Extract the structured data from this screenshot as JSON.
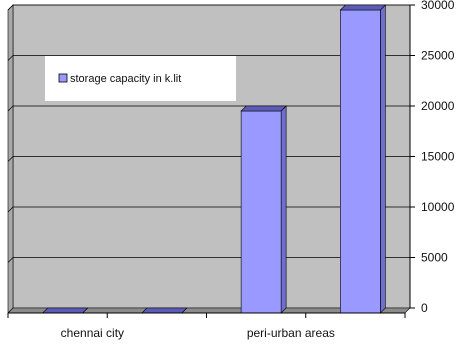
{
  "chart_data": {
    "type": "bar",
    "style": "3d-column",
    "categories": [
      "chennai city",
      "",
      "peri-urban areas",
      ""
    ],
    "series": [
      {
        "name": "storage capacity in k.lit",
        "values": [
          0,
          0,
          20000,
          30000
        ]
      }
    ],
    "ylim": [
      0,
      30000
    ],
    "y_ticks": [
      0,
      5000,
      10000,
      15000,
      20000,
      25000,
      30000
    ],
    "y_axis_side": "right",
    "grid": true,
    "legend_position": "top-left",
    "colors": {
      "plot_background": "#c0c0c0",
      "wall_side": "#a9a9a9",
      "floor": "#8c8c8c",
      "bar_front": "#9999ff",
      "bar_top": "#5c5cb8",
      "bar_side": "#6f6fd0",
      "gridline": "#000000"
    }
  }
}
